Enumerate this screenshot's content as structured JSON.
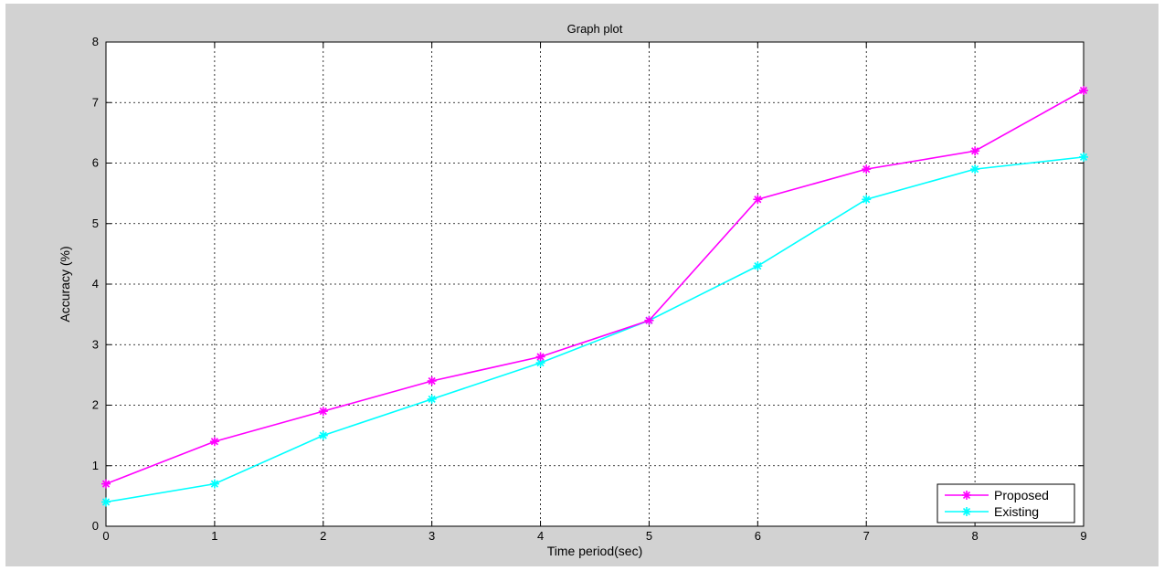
{
  "chart_data": {
    "type": "line",
    "title": "Graph plot",
    "xlabel": "Time period(sec)",
    "ylabel": "Accuracy (%)",
    "xlim": [
      0,
      9
    ],
    "ylim": [
      0,
      8
    ],
    "xticks": [
      0,
      1,
      2,
      3,
      4,
      5,
      6,
      7,
      8,
      9
    ],
    "yticks": [
      0,
      1,
      2,
      3,
      4,
      5,
      6,
      7,
      8
    ],
    "grid": true,
    "legend_position": "bottom-right",
    "x": [
      0,
      1,
      2,
      3,
      4,
      5,
      6,
      7,
      8,
      9
    ],
    "series": [
      {
        "name": "Proposed",
        "color": "#ff00ff",
        "marker": "star",
        "values": [
          0.7,
          1.4,
          1.9,
          2.4,
          2.8,
          3.4,
          5.4,
          5.9,
          6.2,
          7.2
        ]
      },
      {
        "name": "Existing",
        "color": "#00ffff",
        "marker": "star",
        "values": [
          0.4,
          0.7,
          1.5,
          2.1,
          2.7,
          3.4,
          4.3,
          5.4,
          5.9,
          6.1
        ]
      }
    ]
  }
}
